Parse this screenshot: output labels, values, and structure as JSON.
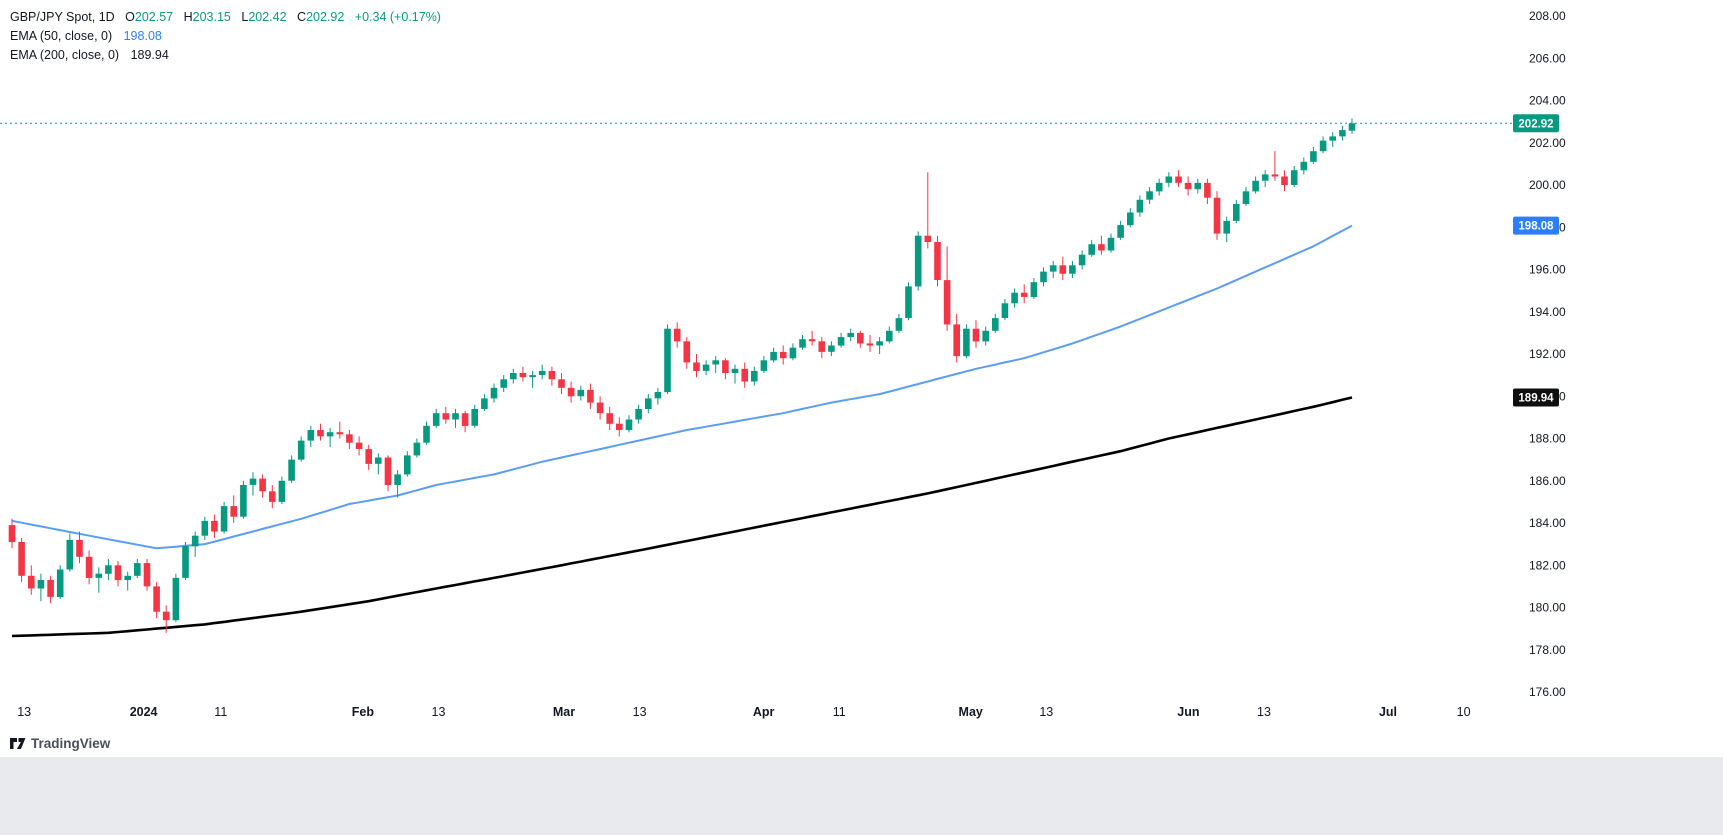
{
  "legend": {
    "symbol": "GBP/JPY Spot, 1D",
    "ohlc": [
      {
        "label": "O",
        "value": "202.57"
      },
      {
        "label": "H",
        "value": "203.15"
      },
      {
        "label": "L",
        "value": "202.42"
      },
      {
        "label": "C",
        "value": "202.92"
      }
    ],
    "change": "+0.34 (+0.17%)",
    "ema50": {
      "name": "EMA (50, close, 0)",
      "value": "198.08"
    },
    "ema200": {
      "name": "EMA (200, close, 0)",
      "value": "189.94"
    }
  },
  "watermark": {
    "text": "TradingView"
  },
  "colors": {
    "up": "#089981",
    "down": "#f23645",
    "ema50": "#5b9cf6",
    "ema200": "#000000",
    "last_price_line": "#089981",
    "badge_last": "#089981",
    "badge_ema50": "#2b7fff",
    "badge_ema200": "#0f0f0f",
    "axis_text": "#131722",
    "footer_strip": "#e8eaed"
  },
  "chart_data": {
    "type": "candlestick",
    "symbol": "GBP/JPY Spot",
    "interval": "1D",
    "title": "GBP/JPY Spot, 1D with EMA(50) and EMA(200)",
    "ohlc_last": {
      "open": 202.57,
      "high": 203.15,
      "low": 202.42,
      "close": 202.92,
      "change": 0.34,
      "change_pct": 0.17
    },
    "last_price": 202.92,
    "ylim": [
      176,
      208
    ],
    "y_ticks": [
      208,
      206,
      204,
      202,
      200,
      198,
      196,
      194,
      192,
      190,
      188,
      186,
      184,
      182,
      180,
      178,
      176
    ],
    "x_labels": [
      {
        "text": "13",
        "x": 0.016,
        "major": false
      },
      {
        "text": "2024",
        "x": 0.095,
        "major": true
      },
      {
        "text": "11",
        "x": 0.146,
        "major": false
      },
      {
        "text": "Feb",
        "x": 0.24,
        "major": true
      },
      {
        "text": "13",
        "x": 0.29,
        "major": false
      },
      {
        "text": "Mar",
        "x": 0.373,
        "major": true
      },
      {
        "text": "13",
        "x": 0.423,
        "major": false
      },
      {
        "text": "Apr",
        "x": 0.505,
        "major": true
      },
      {
        "text": "11",
        "x": 0.555,
        "major": false
      },
      {
        "text": "May",
        "x": 0.642,
        "major": true
      },
      {
        "text": "13",
        "x": 0.692,
        "major": false
      },
      {
        "text": "Jun",
        "x": 0.786,
        "major": true
      },
      {
        "text": "13",
        "x": 0.836,
        "major": false
      },
      {
        "text": "Jul",
        "x": 0.918,
        "major": true
      },
      {
        "text": "10",
        "x": 0.968,
        "major": false
      }
    ],
    "badges": [
      {
        "label": "202.92",
        "price": 202.92,
        "bg": "#089981"
      },
      {
        "label": "198.08",
        "price": 198.08,
        "bg": "#2b7fff"
      },
      {
        "label": "189.94",
        "price": 189.94,
        "bg": "#0f0f0f"
      }
    ],
    "ema50": {
      "label": "EMA 50",
      "points": [
        [
          0,
          184.1
        ],
        [
          8,
          183.4
        ],
        [
          15,
          182.8
        ],
        [
          20,
          183.0
        ],
        [
          25,
          183.6
        ],
        [
          30,
          184.2
        ],
        [
          35,
          184.9
        ],
        [
          40,
          185.3
        ],
        [
          44,
          185.8
        ],
        [
          50,
          186.3
        ],
        [
          55,
          186.9
        ],
        [
          60,
          187.4
        ],
        [
          65,
          187.9
        ],
        [
          70,
          188.4
        ],
        [
          75,
          188.8
        ],
        [
          80,
          189.2
        ],
        [
          85,
          189.7
        ],
        [
          90,
          190.1
        ],
        [
          95,
          190.7
        ],
        [
          100,
          191.3
        ],
        [
          105,
          191.8
        ],
        [
          110,
          192.5
        ],
        [
          115,
          193.3
        ],
        [
          120,
          194.2
        ],
        [
          125,
          195.1
        ],
        [
          130,
          196.1
        ],
        [
          135,
          197.1
        ],
        [
          139,
          198.08
        ]
      ]
    },
    "ema200": {
      "label": "EMA 200",
      "points": [
        [
          0,
          178.65
        ],
        [
          10,
          178.8
        ],
        [
          20,
          179.2
        ],
        [
          30,
          179.8
        ],
        [
          37,
          180.3
        ],
        [
          44,
          180.9
        ],
        [
          50,
          181.4
        ],
        [
          57,
          182.0
        ],
        [
          65,
          182.7
        ],
        [
          75,
          183.6
        ],
        [
          85,
          184.5
        ],
        [
          95,
          185.4
        ],
        [
          100,
          185.9
        ],
        [
          105,
          186.4
        ],
        [
          110,
          186.9
        ],
        [
          115,
          187.4
        ],
        [
          120,
          188.0
        ],
        [
          125,
          188.5
        ],
        [
          130,
          189.0
        ],
        [
          135,
          189.5
        ],
        [
          139,
          189.94
        ]
      ]
    },
    "candles": [
      [
        183.9,
        184.2,
        182.8,
        183.1
      ],
      [
        183.1,
        183.3,
        181.2,
        181.5
      ],
      [
        181.5,
        182.0,
        180.6,
        180.9
      ],
      [
        180.9,
        181.6,
        180.3,
        181.3
      ],
      [
        181.3,
        181.5,
        180.2,
        180.5
      ],
      [
        180.5,
        182.0,
        180.4,
        181.8
      ],
      [
        181.8,
        183.5,
        181.7,
        183.2
      ],
      [
        183.2,
        183.6,
        182.1,
        182.4
      ],
      [
        182.4,
        182.7,
        181.1,
        181.4
      ],
      [
        181.4,
        181.9,
        180.7,
        181.6
      ],
      [
        181.6,
        182.3,
        181.3,
        182.0
      ],
      [
        182.0,
        182.2,
        181.0,
        181.3
      ],
      [
        181.3,
        181.7,
        180.8,
        181.5
      ],
      [
        181.5,
        182.3,
        181.4,
        182.1
      ],
      [
        182.1,
        182.3,
        180.8,
        181.0
      ],
      [
        181.0,
        181.2,
        179.5,
        179.8
      ],
      [
        179.8,
        180.1,
        178.8,
        179.4
      ],
      [
        179.4,
        181.6,
        179.3,
        181.4
      ],
      [
        181.4,
        183.1,
        181.3,
        182.9
      ],
      [
        182.9,
        183.6,
        182.4,
        183.4
      ],
      [
        183.4,
        184.3,
        183.2,
        184.1
      ],
      [
        184.1,
        184.4,
        183.3,
        183.6
      ],
      [
        183.6,
        185.0,
        183.5,
        184.8
      ],
      [
        184.8,
        185.3,
        184.0,
        184.3
      ],
      [
        184.3,
        186.0,
        184.2,
        185.8
      ],
      [
        185.8,
        186.4,
        185.3,
        186.1
      ],
      [
        186.1,
        186.3,
        185.2,
        185.5
      ],
      [
        185.5,
        185.8,
        184.7,
        185.0
      ],
      [
        185.0,
        186.2,
        184.9,
        186.0
      ],
      [
        186.0,
        187.2,
        185.9,
        187.0
      ],
      [
        187.0,
        188.1,
        186.9,
        187.9
      ],
      [
        187.9,
        188.6,
        187.6,
        188.4
      ],
      [
        188.4,
        188.7,
        187.9,
        188.1
      ],
      [
        188.1,
        188.5,
        187.6,
        188.3
      ],
      [
        188.3,
        188.8,
        188.0,
        188.2
      ],
      [
        188.2,
        188.4,
        187.5,
        187.8
      ],
      [
        187.8,
        188.1,
        187.2,
        187.5
      ],
      [
        187.5,
        187.7,
        186.5,
        186.8
      ],
      [
        186.8,
        187.3,
        186.3,
        187.1
      ],
      [
        187.1,
        187.2,
        185.5,
        185.8
      ],
      [
        185.8,
        186.5,
        185.2,
        186.3
      ],
      [
        186.3,
        187.4,
        186.2,
        187.2
      ],
      [
        187.2,
        188.0,
        187.1,
        187.8
      ],
      [
        187.8,
        188.8,
        187.7,
        188.6
      ],
      [
        188.6,
        189.4,
        188.5,
        189.2
      ],
      [
        189.2,
        189.5,
        188.7,
        188.9
      ],
      [
        188.9,
        189.4,
        188.5,
        189.2
      ],
      [
        189.2,
        189.3,
        188.3,
        188.6
      ],
      [
        188.6,
        189.6,
        188.5,
        189.4
      ],
      [
        189.4,
        190.1,
        189.3,
        189.9
      ],
      [
        189.9,
        190.6,
        189.7,
        190.4
      ],
      [
        190.4,
        191.0,
        190.2,
        190.8
      ],
      [
        190.8,
        191.3,
        190.6,
        191.1
      ],
      [
        191.1,
        191.4,
        190.7,
        190.9
      ],
      [
        190.9,
        191.2,
        190.4,
        191.0
      ],
      [
        191.0,
        191.5,
        190.8,
        191.2
      ],
      [
        191.2,
        191.4,
        190.5,
        190.8
      ],
      [
        190.8,
        191.1,
        190.1,
        190.4
      ],
      [
        190.4,
        190.7,
        189.7,
        190.0
      ],
      [
        190.0,
        190.5,
        189.8,
        190.3
      ],
      [
        190.3,
        190.6,
        189.4,
        189.7
      ],
      [
        189.7,
        190.0,
        188.9,
        189.2
      ],
      [
        189.2,
        189.5,
        188.4,
        188.7
      ],
      [
        188.7,
        189.0,
        188.1,
        188.4
      ],
      [
        188.4,
        189.1,
        188.3,
        188.9
      ],
      [
        188.9,
        189.6,
        188.7,
        189.4
      ],
      [
        189.4,
        190.1,
        189.2,
        189.9
      ],
      [
        189.9,
        190.4,
        189.6,
        190.2
      ],
      [
        190.2,
        193.4,
        190.1,
        193.2
      ],
      [
        193.2,
        193.5,
        192.3,
        192.6
      ],
      [
        192.6,
        192.8,
        191.3,
        191.6
      ],
      [
        191.6,
        192.0,
        190.9,
        191.2
      ],
      [
        191.2,
        191.7,
        191.0,
        191.5
      ],
      [
        191.5,
        191.9,
        191.1,
        191.7
      ],
      [
        191.7,
        191.8,
        190.8,
        191.1
      ],
      [
        191.1,
        191.5,
        190.6,
        191.3
      ],
      [
        191.3,
        191.6,
        190.4,
        190.7
      ],
      [
        190.7,
        191.4,
        190.5,
        191.2
      ],
      [
        191.2,
        191.9,
        191.1,
        191.7
      ],
      [
        191.7,
        192.3,
        191.6,
        192.1
      ],
      [
        192.1,
        192.4,
        191.5,
        191.8
      ],
      [
        191.8,
        192.5,
        191.7,
        192.3
      ],
      [
        192.3,
        192.9,
        192.2,
        192.7
      ],
      [
        192.7,
        193.1,
        192.4,
        192.6
      ],
      [
        192.6,
        192.8,
        191.8,
        192.1
      ],
      [
        192.1,
        192.6,
        191.9,
        192.4
      ],
      [
        192.4,
        193.0,
        192.3,
        192.8
      ],
      [
        192.8,
        193.2,
        192.6,
        193.0
      ],
      [
        193.0,
        193.1,
        192.3,
        192.5
      ],
      [
        192.5,
        192.9,
        192.1,
        192.4
      ],
      [
        192.4,
        192.8,
        192.0,
        192.6
      ],
      [
        192.6,
        193.3,
        192.5,
        193.1
      ],
      [
        193.1,
        193.9,
        193.0,
        193.7
      ],
      [
        193.7,
        195.4,
        193.6,
        195.2
      ],
      [
        195.2,
        197.8,
        195.0,
        197.6
      ],
      [
        197.6,
        200.6,
        197.0,
        197.3
      ],
      [
        197.3,
        197.6,
        195.2,
        195.5
      ],
      [
        195.5,
        197.1,
        193.1,
        193.4
      ],
      [
        193.4,
        193.9,
        191.6,
        191.9
      ],
      [
        191.9,
        193.4,
        191.8,
        193.2
      ],
      [
        193.2,
        193.6,
        192.3,
        192.6
      ],
      [
        192.6,
        193.3,
        192.4,
        193.1
      ],
      [
        193.1,
        193.9,
        193.0,
        193.7
      ],
      [
        193.7,
        194.6,
        193.6,
        194.4
      ],
      [
        194.4,
        195.1,
        194.2,
        194.9
      ],
      [
        194.9,
        195.3,
        194.4,
        194.7
      ],
      [
        194.7,
        195.6,
        194.6,
        195.4
      ],
      [
        195.4,
        196.1,
        195.2,
        195.9
      ],
      [
        195.9,
        196.4,
        195.6,
        196.2
      ],
      [
        196.2,
        196.6,
        195.5,
        195.8
      ],
      [
        195.8,
        196.4,
        195.6,
        196.2
      ],
      [
        196.2,
        196.9,
        196.0,
        196.7
      ],
      [
        196.7,
        197.4,
        196.6,
        197.2
      ],
      [
        197.2,
        197.6,
        196.7,
        196.9
      ],
      [
        196.9,
        197.7,
        196.8,
        197.5
      ],
      [
        197.5,
        198.3,
        197.4,
        198.1
      ],
      [
        198.1,
        198.9,
        198.0,
        198.7
      ],
      [
        198.7,
        199.5,
        198.5,
        199.3
      ],
      [
        199.3,
        199.9,
        199.1,
        199.7
      ],
      [
        199.7,
        200.3,
        199.5,
        200.1
      ],
      [
        200.1,
        200.6,
        199.9,
        200.4
      ],
      [
        200.4,
        200.7,
        199.9,
        200.1
      ],
      [
        200.1,
        200.4,
        199.5,
        199.8
      ],
      [
        199.8,
        200.3,
        199.6,
        200.1
      ],
      [
        200.1,
        200.3,
        199.1,
        199.4
      ],
      [
        199.4,
        199.7,
        197.4,
        197.7
      ],
      [
        197.7,
        198.5,
        197.3,
        198.3
      ],
      [
        198.3,
        199.3,
        198.2,
        199.1
      ],
      [
        199.1,
        199.9,
        199.0,
        199.7
      ],
      [
        199.7,
        200.4,
        199.6,
        200.2
      ],
      [
        200.2,
        200.7,
        199.9,
        200.5
      ],
      [
        200.5,
        201.6,
        200.2,
        200.4
      ],
      [
        200.4,
        200.7,
        199.7,
        200.0
      ],
      [
        200.0,
        200.9,
        199.9,
        200.7
      ],
      [
        200.7,
        201.3,
        200.5,
        201.1
      ],
      [
        201.1,
        201.8,
        201.0,
        201.6
      ],
      [
        201.6,
        202.3,
        201.5,
        202.1
      ],
      [
        202.1,
        202.5,
        201.8,
        202.3
      ],
      [
        202.3,
        202.8,
        202.1,
        202.6
      ],
      [
        202.57,
        203.15,
        202.42,
        202.92
      ]
    ]
  }
}
